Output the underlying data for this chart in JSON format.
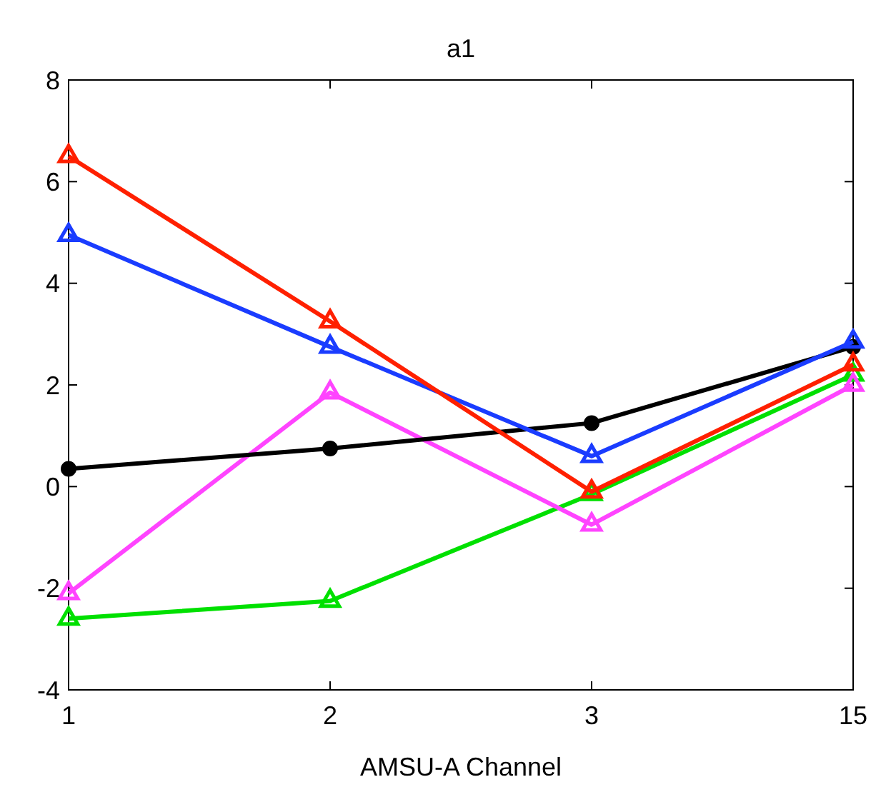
{
  "chart_data": {
    "type": "line",
    "title": "a1",
    "xlabel": "AMSU-A Channel",
    "categories": [
      "1",
      "2",
      "3",
      "15"
    ],
    "ylim": [
      -4,
      8
    ],
    "yticks": [
      -4,
      -2,
      0,
      2,
      4,
      6,
      8
    ],
    "grid": false,
    "line_style": "solid",
    "series": [
      {
        "color": "#ff2000",
        "marker": "triangle",
        "values": [
          6.5,
          3.25,
          -0.1,
          2.4
        ]
      },
      {
        "color": "#1a3cff",
        "marker": "triangle",
        "values": [
          4.95,
          2.75,
          0.6,
          2.85
        ]
      },
      {
        "color": "#000000",
        "marker": "circle",
        "values": [
          0.35,
          0.75,
          1.25,
          2.75
        ]
      },
      {
        "color": "#ff44ff",
        "marker": "triangle",
        "values": [
          -2.1,
          1.85,
          -0.75,
          2.0
        ]
      },
      {
        "color": "#00e000",
        "marker": "triangle",
        "values": [
          -2.6,
          -2.25,
          -0.15,
          2.2
        ]
      }
    ]
  }
}
